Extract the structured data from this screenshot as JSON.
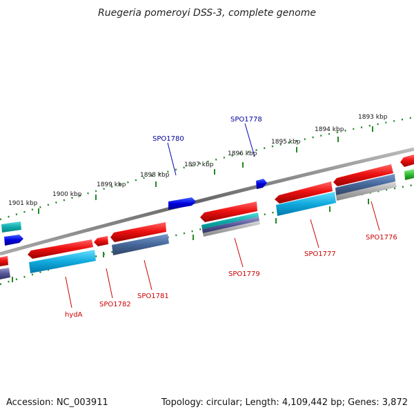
{
  "title": "Ruegeria pomeroyi DSS-3, complete genome",
  "footer": {
    "accession": "Accession: NC_003911",
    "summary": "Topology: circular; Length: 4,109,442 bp; Genes: 3,872"
  },
  "ruler_labels": [
    "1901 kbp",
    "1900 kbp",
    "1899 kbp",
    "1898 kbp",
    "1897 kbp",
    "1896 kbp",
    "1895 kbp",
    "1894 kbp",
    "1893 kbp"
  ],
  "outer_gene_labels": [
    "SPO1780",
    "SPO1778"
  ],
  "inner_gene_labels": [
    "hydA",
    "SPO1782",
    "SPO1781",
    "SPO1779",
    "SPO1777",
    "SPO1776"
  ],
  "colors": {
    "forward_gene": "#dd0000",
    "outer_feature": "#0000dd",
    "outer_label": "#000099",
    "inner_label": "#cc0000",
    "tick": "#228822",
    "backbone": "#777777",
    "cyan_feature": "#22bbdd",
    "steel_feature": "#4477aa",
    "green_feature": "#33bb33"
  }
}
